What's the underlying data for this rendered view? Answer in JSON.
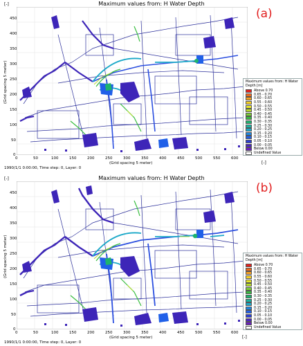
{
  "panels": [
    {
      "title": "Maximum values from: H Water Depth",
      "tag": "(a)",
      "y_unit": "[-]",
      "x_unit": "[-]",
      "ylabel": "(Grid spacing 5 meter)",
      "xlabel": "(Grid spacing 5 meter)",
      "y_ticks": [
        "450",
        "400",
        "350",
        "300",
        "250",
        "200",
        "150",
        "100",
        "50",
        "0"
      ],
      "x_ticks": [
        "0",
        "50",
        "100",
        "150",
        "200",
        "250",
        "300",
        "350",
        "400",
        "450",
        "500",
        "550",
        "600"
      ],
      "footer": "1990/1/1 0:00:00, Time step: 0, Layer: 0",
      "legend_title": "Maximum values from: H Water Depth [m]"
    },
    {
      "title": "Maximum values from: H Water Depth",
      "tag": "(b)",
      "y_unit": "[-]",
      "x_unit": "[-]",
      "ylabel": "(Grid spacing 5 meter)",
      "xlabel": "(Grid spacing 5 meter)",
      "y_ticks": [
        "450",
        "400",
        "350",
        "300",
        "250",
        "200",
        "150",
        "100",
        "50",
        "0"
      ],
      "x_ticks": [
        "0",
        "50",
        "100",
        "150",
        "200",
        "250",
        "300",
        "350",
        "400",
        "450",
        "500",
        "550",
        "600"
      ],
      "footer": "1990/1/1 0:00:00, Time step: 0, Layer: 0",
      "legend_title": "Maximum values from: H Water Depth [m]"
    }
  ],
  "legend_items": [
    {
      "label": "Above 0.70",
      "color": "#e5201c"
    },
    {
      "label": "0.65 - 0.70",
      "color": "#f06a1c"
    },
    {
      "label": "0.60 - 0.65",
      "color": "#f6a020"
    },
    {
      "label": "0.55 - 0.60",
      "color": "#f5cf22"
    },
    {
      "label": "0.50 - 0.55",
      "color": "#e6e627"
    },
    {
      "label": "0.45 - 0.50",
      "color": "#b8dc2a"
    },
    {
      "label": "0.40 - 0.45",
      "color": "#7ccd33"
    },
    {
      "label": "0.35 - 0.40",
      "color": "#38bd3f"
    },
    {
      "label": "0.30 - 0.35",
      "color": "#1db46e"
    },
    {
      "label": "0.25 - 0.30",
      "color": "#19b4a0"
    },
    {
      "label": "0.20 - 0.25",
      "color": "#1aa8c8"
    },
    {
      "label": "0.15 - 0.20",
      "color": "#1d86e0"
    },
    {
      "label": "0.10 - 0.15",
      "color": "#2060e8"
    },
    {
      "label": "0.05 - 0.10",
      "color": "#2a3ed8"
    },
    {
      "label": "0.00 - 0.05",
      "color": "#4a26c0"
    },
    {
      "label": "Below 0.00",
      "color": "#6a1ec0"
    },
    {
      "label": "Undefined Value",
      "color": "#ffffff"
    }
  ]
}
